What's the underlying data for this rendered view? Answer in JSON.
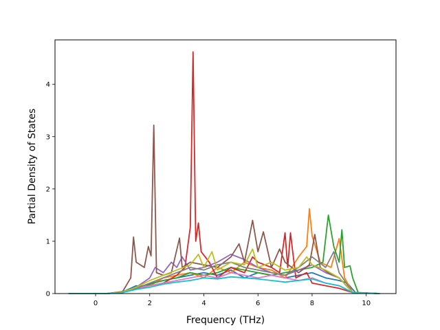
{
  "chart_data": {
    "type": "line",
    "title": "",
    "xlabel": "Frequency (THz)",
    "ylabel": "Partial Density of States",
    "xlim": [
      -1.5,
      11.1
    ],
    "ylim": [
      0,
      4.85
    ],
    "xticks": [
      "0",
      "2",
      "4",
      "6",
      "8",
      "10"
    ],
    "yticks": [
      "0",
      "1",
      "2",
      "3",
      "4"
    ],
    "grid": false,
    "legend": "none",
    "series": [
      {
        "color": "#1f77b4",
        "points": [
          [
            -1,
            0
          ],
          [
            0.4,
            0
          ],
          [
            1,
            0.03
          ],
          [
            1.5,
            0.15
          ],
          [
            1.8,
            0.12
          ],
          [
            2.1,
            0.2
          ],
          [
            2.5,
            0.25
          ],
          [
            3,
            0.3
          ],
          [
            3.5,
            0.35
          ],
          [
            4,
            0.4
          ],
          [
            4.5,
            0.35
          ],
          [
            5,
            0.45
          ],
          [
            5.5,
            0.3
          ],
          [
            6,
            0.4
          ],
          [
            6.5,
            0.35
          ],
          [
            7,
            0.3
          ],
          [
            7.5,
            0.35
          ],
          [
            8,
            0.4
          ],
          [
            8.5,
            0.3
          ],
          [
            9,
            0.25
          ],
          [
            9.3,
            0.2
          ],
          [
            9.6,
            0.02
          ],
          [
            10.5,
            0
          ]
        ]
      },
      {
        "color": "#ff7f0e",
        "points": [
          [
            -1,
            0
          ],
          [
            0.4,
            0
          ],
          [
            1,
            0.02
          ],
          [
            1.5,
            0.1
          ],
          [
            2,
            0.15
          ],
          [
            2.5,
            0.3
          ],
          [
            3,
            0.35
          ],
          [
            3.5,
            0.4
          ],
          [
            4,
            0.3
          ],
          [
            4.5,
            0.5
          ],
          [
            5,
            0.4
          ],
          [
            5.5,
            0.6
          ],
          [
            6,
            0.5
          ],
          [
            6.5,
            0.45
          ],
          [
            7,
            0.3
          ],
          [
            7.5,
            0.7
          ],
          [
            7.8,
            0.9
          ],
          [
            7.9,
            1.62
          ],
          [
            8,
            1.1
          ],
          [
            8.3,
            0.6
          ],
          [
            8.7,
            0.5
          ],
          [
            9,
            1.05
          ],
          [
            9.2,
            0.3
          ],
          [
            9.5,
            0.02
          ],
          [
            10.5,
            0
          ]
        ]
      },
      {
        "color": "#2ca02c",
        "points": [
          [
            -1,
            0
          ],
          [
            0.4,
            0
          ],
          [
            1,
            0.02
          ],
          [
            1.5,
            0.12
          ],
          [
            2,
            0.18
          ],
          [
            2.5,
            0.25
          ],
          [
            3,
            0.3
          ],
          [
            3.5,
            0.4
          ],
          [
            4,
            0.35
          ],
          [
            4.5,
            0.4
          ],
          [
            5,
            0.5
          ],
          [
            5.5,
            0.45
          ],
          [
            6,
            0.4
          ],
          [
            6.5,
            0.35
          ],
          [
            7,
            0.4
          ],
          [
            7.5,
            0.45
          ],
          [
            8,
            0.5
          ],
          [
            8.4,
            0.6
          ],
          [
            8.6,
            1.5
          ],
          [
            8.8,
            0.9
          ],
          [
            9,
            0.6
          ],
          [
            9.1,
            1.22
          ],
          [
            9.2,
            0.5
          ],
          [
            9.4,
            0.53
          ],
          [
            9.5,
            0.3
          ],
          [
            9.7,
            0.02
          ],
          [
            10.5,
            0
          ]
        ]
      },
      {
        "color": "#d62728",
        "points": [
          [
            -1,
            0
          ],
          [
            0.4,
            0
          ],
          [
            1,
            0.02
          ],
          [
            1.5,
            0.1
          ],
          [
            2,
            0.15
          ],
          [
            2.5,
            0.2
          ],
          [
            3,
            0.35
          ],
          [
            3.3,
            0.5
          ],
          [
            3.5,
            1.27
          ],
          [
            3.6,
            4.62
          ],
          [
            3.7,
            1.0
          ],
          [
            3.8,
            1.35
          ],
          [
            3.9,
            0.8
          ],
          [
            4.2,
            0.6
          ],
          [
            4.5,
            0.3
          ],
          [
            5,
            0.5
          ],
          [
            5.5,
            0.4
          ],
          [
            5.8,
            0.7
          ],
          [
            6,
            0.6
          ],
          [
            6.5,
            0.5
          ],
          [
            6.8,
            0.4
          ],
          [
            7,
            1.16
          ],
          [
            7.1,
            0.5
          ],
          [
            7.2,
            1.16
          ],
          [
            7.4,
            0.3
          ],
          [
            7.8,
            0.4
          ],
          [
            8,
            0.2
          ],
          [
            8.5,
            0.15
          ],
          [
            9,
            0.1
          ],
          [
            9.5,
            0.02
          ],
          [
            10.5,
            0
          ]
        ]
      },
      {
        "color": "#9467bd",
        "points": [
          [
            -1,
            0
          ],
          [
            0.4,
            0
          ],
          [
            1,
            0.02
          ],
          [
            1.5,
            0.12
          ],
          [
            2,
            0.3
          ],
          [
            2.2,
            0.5
          ],
          [
            2.5,
            0.4
          ],
          [
            2.8,
            0.6
          ],
          [
            3,
            0.5
          ],
          [
            3.2,
            0.7
          ],
          [
            3.5,
            0.45
          ],
          [
            4,
            0.5
          ],
          [
            4.5,
            0.6
          ],
          [
            5,
            0.75
          ],
          [
            5.5,
            0.65
          ],
          [
            6,
            0.5
          ],
          [
            6.5,
            0.4
          ],
          [
            7,
            0.35
          ],
          [
            7.5,
            0.45
          ],
          [
            8,
            0.55
          ],
          [
            8.5,
            0.4
          ],
          [
            9,
            0.3
          ],
          [
            9.5,
            0.02
          ],
          [
            10.5,
            0
          ]
        ]
      },
      {
        "color": "#8c564b",
        "points": [
          [
            -1,
            0
          ],
          [
            0.4,
            0
          ],
          [
            1,
            0.04
          ],
          [
            1.3,
            0.3
          ],
          [
            1.4,
            1.08
          ],
          [
            1.5,
            0.6
          ],
          [
            1.8,
            0.5
          ],
          [
            1.95,
            0.9
          ],
          [
            2.05,
            0.72
          ],
          [
            2.15,
            3.22
          ],
          [
            2.25,
            0.4
          ],
          [
            2.5,
            0.35
          ],
          [
            2.8,
            0.4
          ],
          [
            3.1,
            1.06
          ],
          [
            3.2,
            0.5
          ],
          [
            3.5,
            0.6
          ],
          [
            4,
            0.55
          ],
          [
            4.5,
            0.5
          ],
          [
            5,
            0.7
          ],
          [
            5.3,
            0.95
          ],
          [
            5.5,
            0.6
          ],
          [
            5.8,
            1.4
          ],
          [
            6,
            0.8
          ],
          [
            6.2,
            1.18
          ],
          [
            6.5,
            0.5
          ],
          [
            6.8,
            0.85
          ],
          [
            7,
            0.6
          ],
          [
            7.5,
            0.4
          ],
          [
            7.9,
            0.55
          ],
          [
            8.1,
            1.13
          ],
          [
            8.3,
            0.5
          ],
          [
            8.6,
            0.4
          ],
          [
            9,
            0.3
          ],
          [
            9.5,
            0.02
          ],
          [
            10.5,
            0
          ]
        ]
      },
      {
        "color": "#e377c2",
        "points": [
          [
            -1,
            0
          ],
          [
            0.4,
            0
          ],
          [
            1,
            0.02
          ],
          [
            1.5,
            0.1
          ],
          [
            2,
            0.15
          ],
          [
            2.5,
            0.2
          ],
          [
            3,
            0.25
          ],
          [
            3.5,
            0.3
          ],
          [
            4,
            0.35
          ],
          [
            4.5,
            0.3
          ],
          [
            5,
            0.4
          ],
          [
            5.5,
            0.35
          ],
          [
            6,
            0.3
          ],
          [
            6.5,
            0.35
          ],
          [
            7,
            0.3
          ],
          [
            7.5,
            0.25
          ],
          [
            8,
            0.3
          ],
          [
            8.5,
            0.2
          ],
          [
            9,
            0.15
          ],
          [
            9.5,
            0.02
          ],
          [
            10.5,
            0
          ]
        ]
      },
      {
        "color": "#7f7f7f",
        "points": [
          [
            -1,
            0
          ],
          [
            0.4,
            0
          ],
          [
            1,
            0.02
          ],
          [
            1.5,
            0.1
          ],
          [
            2,
            0.2
          ],
          [
            2.5,
            0.3
          ],
          [
            3,
            0.4
          ],
          [
            3.5,
            0.5
          ],
          [
            4,
            0.45
          ],
          [
            4.5,
            0.55
          ],
          [
            5,
            0.6
          ],
          [
            5.5,
            0.5
          ],
          [
            6,
            0.45
          ],
          [
            6.5,
            0.4
          ],
          [
            7,
            0.35
          ],
          [
            7.5,
            0.5
          ],
          [
            8,
            0.7
          ],
          [
            8.5,
            0.5
          ],
          [
            8.8,
            0.8
          ],
          [
            9,
            0.4
          ],
          [
            9.5,
            0.02
          ],
          [
            10.5,
            0
          ]
        ]
      },
      {
        "color": "#bcbd22",
        "points": [
          [
            -1,
            0
          ],
          [
            0.4,
            0
          ],
          [
            1,
            0.03
          ],
          [
            1.5,
            0.12
          ],
          [
            2,
            0.25
          ],
          [
            2.5,
            0.35
          ],
          [
            3,
            0.45
          ],
          [
            3.5,
            0.55
          ],
          [
            3.8,
            0.75
          ],
          [
            4,
            0.5
          ],
          [
            4.3,
            0.8
          ],
          [
            4.5,
            0.45
          ],
          [
            5,
            0.6
          ],
          [
            5.5,
            0.55
          ],
          [
            5.8,
            0.85
          ],
          [
            6,
            0.5
          ],
          [
            6.5,
            0.6
          ],
          [
            7,
            0.45
          ],
          [
            7.5,
            0.5
          ],
          [
            7.8,
            0.7
          ],
          [
            8,
            0.55
          ],
          [
            8.5,
            0.45
          ],
          [
            9,
            0.3
          ],
          [
            9.5,
            0.02
          ],
          [
            10.5,
            0
          ]
        ]
      },
      {
        "color": "#17becf",
        "points": [
          [
            -1,
            0
          ],
          [
            0.4,
            0
          ],
          [
            1,
            0.02
          ],
          [
            1.5,
            0.08
          ],
          [
            2,
            0.12
          ],
          [
            2.5,
            0.18
          ],
          [
            3,
            0.22
          ],
          [
            3.5,
            0.25
          ],
          [
            4,
            0.3
          ],
          [
            4.5,
            0.28
          ],
          [
            5,
            0.32
          ],
          [
            5.5,
            0.3
          ],
          [
            6,
            0.28
          ],
          [
            6.5,
            0.25
          ],
          [
            7,
            0.22
          ],
          [
            7.5,
            0.25
          ],
          [
            8,
            0.28
          ],
          [
            8.5,
            0.2
          ],
          [
            9,
            0.15
          ],
          [
            9.5,
            0.02
          ],
          [
            10.5,
            0
          ]
        ]
      }
    ]
  }
}
